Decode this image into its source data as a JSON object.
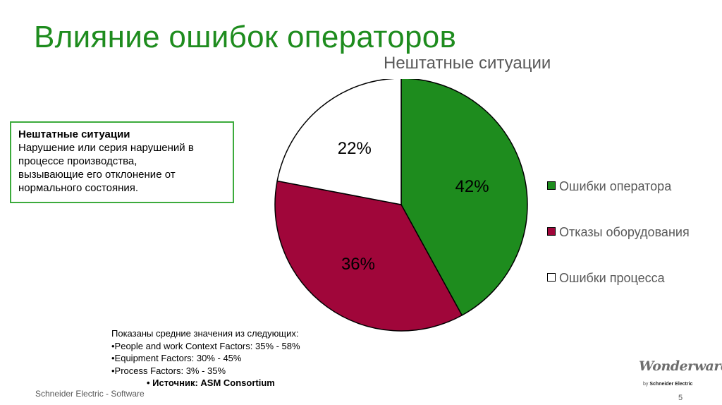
{
  "slide": {
    "title": "Влияние ошибок операторов",
    "footer": "Schneider Electric - Software",
    "page_number": "5"
  },
  "definition": {
    "heading": "Нештатные ситуации",
    "lines": [
      "Нарушение или серия нарушений в",
      "процессе производства,",
      "вызывающие его отклонение от",
      "нормального состояния."
    ]
  },
  "notes": {
    "intro": "Показаны средние значения из следующих:",
    "items": [
      "•People and work Context Factors: 35% - 58%",
      "•Equipment Factors: 30% - 45%",
      "•Process Factors: 3% - 35%"
    ],
    "source": "•     Источник: ASM Consortium"
  },
  "logo": {
    "script": "Wonderware",
    "by_prefix": "by",
    "by_brand": "Schneider Electric"
  },
  "chart_data": {
    "type": "pie",
    "title": "Нештатные ситуации",
    "categories": [
      "Ошибки оператора",
      "Отказы оборудования",
      "Ошибки процесса"
    ],
    "values": [
      42,
      36,
      22
    ],
    "labels": [
      "42%",
      "36%",
      "22%"
    ],
    "colors": [
      "#1e8c1e",
      "#a0063a",
      "#ffffff"
    ],
    "start": "12 o'clock, clockwise",
    "legend_position": "right"
  }
}
